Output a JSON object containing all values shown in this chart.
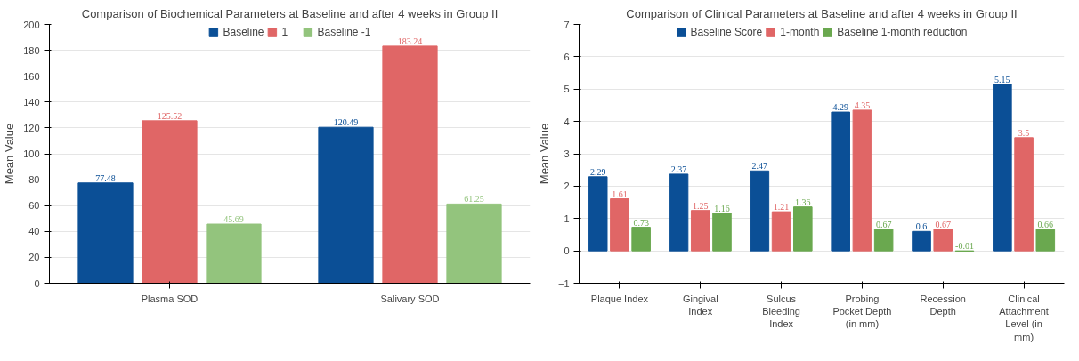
{
  "chart_data": [
    {
      "type": "bar",
      "title": "Comparison of Biochemical Parameters at Baseline and after 4 weeks in Group II",
      "ylabel": "Mean Value",
      "categories": [
        "Plasma SOD",
        "Salivary SOD"
      ],
      "series": [
        {
          "name": "Baseline",
          "color": "#0b4f96",
          "values": [
            77.48,
            120.49
          ]
        },
        {
          "name": "1",
          "color": "#e06666",
          "values": [
            125.52,
            183.24
          ]
        },
        {
          "name": "Baseline -1",
          "color": "#93c47d",
          "values": [
            45.69,
            61.25
          ]
        }
      ],
      "ylim": [
        0,
        200
      ],
      "yticks": [
        0,
        20,
        40,
        60,
        80,
        100,
        120,
        140,
        160,
        180,
        200
      ],
      "grid": "y",
      "legend": "top",
      "data_labels": true
    },
    {
      "type": "bar",
      "title": "Comparison of Clinical Parameters at Baseline and after 4 weeks in Group II",
      "ylabel": "Mean Value",
      "categories": [
        "Plaque Index",
        "Gingival Index",
        "Sulcus Bleeding Index",
        "Probing Pocket Depth (in mm)",
        "Recession Depth",
        "Clinical Attachment Level (in mm)"
      ],
      "series": [
        {
          "name": "Baseline Score",
          "color": "#0b4f96",
          "values": [
            2.29,
            2.37,
            2.47,
            4.29,
            0.6,
            5.15
          ]
        },
        {
          "name": "1-month",
          "color": "#e06666",
          "values": [
            1.61,
            1.25,
            1.21,
            4.35,
            0.67,
            3.5
          ]
        },
        {
          "name": "Baseline 1-month reduction",
          "color": "#6aa84f",
          "values": [
            0.73,
            1.16,
            1.36,
            0.67,
            -0.01,
            0.66
          ]
        }
      ],
      "ylim": [
        -1,
        7
      ],
      "yticks": [
        -1,
        0,
        1,
        2,
        3,
        4,
        5,
        6,
        7
      ],
      "grid": "y",
      "legend": "top",
      "data_labels": true
    }
  ]
}
